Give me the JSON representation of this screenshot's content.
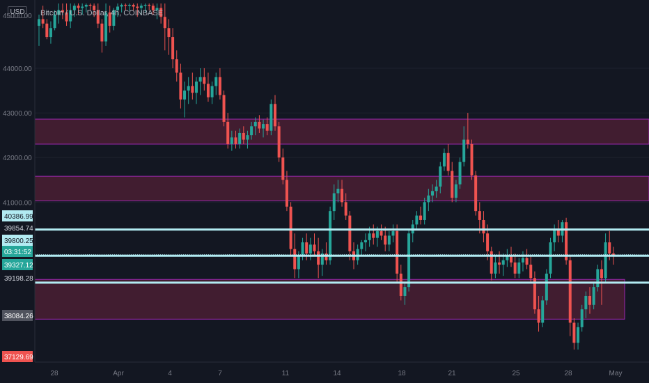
{
  "header": {
    "title": "Bitcoin / U.S. Dollar, 4h, COINBASE",
    "currency_badge": "USD"
  },
  "colors": {
    "background": "#131722",
    "up": "#26a69a",
    "down": "#ef5350",
    "zone_fill": "#4a1f33",
    "zone_border": "#9c27b0",
    "level_line": "#b2ebf2",
    "axis_text": "#787b86",
    "grid": "#1e222d"
  },
  "chart_data": {
    "type": "candlestick",
    "ylim": [
      36950,
      45450
    ],
    "y_ticks": [
      41000,
      42000,
      43000,
      44000
    ],
    "y_tick_labels": [
      "41000.00",
      "42000.00",
      "43000.00",
      "44000.00"
    ],
    "x_ticks": [
      "28",
      "Apr",
      "4",
      "7",
      "11",
      "14",
      "18",
      "21",
      "25",
      "28",
      "May"
    ],
    "price_labels": [
      {
        "text": "40386.99",
        "price": 40386.99,
        "style": "level"
      },
      {
        "text": "39854.74",
        "price": 39854.74,
        "style": "plain"
      },
      {
        "text": "39800.25",
        "price": 39800.25,
        "style": "level"
      },
      {
        "text": "03:31:52",
        "price": 39600,
        "style": "current"
      },
      {
        "text": "39327.12",
        "price": 39327.12,
        "style": "current"
      },
      {
        "text": "39198.28",
        "price": 39198.28,
        "style": "plain"
      },
      {
        "text": "38084.26",
        "price": 38084.26,
        "style": "gray"
      },
      {
        "text": "37129.69",
        "price": 37129.69,
        "style": "red"
      }
    ],
    "zones": [
      {
        "from": 42300,
        "to": 42860
      },
      {
        "from": 41030,
        "to": 41580
      },
      {
        "from": 38380,
        "to": 39270,
        "ends_at": "28"
      }
    ],
    "levels": [
      40386.99,
      39800.25,
      39198.28
    ],
    "candles": [
      [
        44950,
        45200,
        44500,
        45100
      ],
      [
        45100,
        45400,
        44900,
        45000
      ],
      [
        45000,
        45100,
        44650,
        44700
      ],
      [
        44700,
        45050,
        44550,
        44900
      ],
      [
        44900,
        45300,
        44850,
        45200
      ],
      [
        45200,
        45450,
        45000,
        45300
      ],
      [
        45300,
        45450,
        45100,
        45250
      ],
      [
        45250,
        45450,
        44950,
        45050
      ],
      [
        45050,
        45450,
        44900,
        45300
      ],
      [
        45300,
        45450,
        45150,
        45400
      ],
      [
        45400,
        45450,
        45200,
        45350
      ],
      [
        45350,
        45450,
        45200,
        45380
      ],
      [
        45380,
        45450,
        45250,
        45420
      ],
      [
        45420,
        45450,
        45300,
        45400
      ],
      [
        45400,
        45450,
        45150,
        45300
      ],
      [
        45300,
        45450,
        44900,
        45000
      ],
      [
        45000,
        45100,
        44350,
        44600
      ],
      [
        44600,
        45450,
        44500,
        45250
      ],
      [
        45250,
        45400,
        44800,
        44950
      ],
      [
        44950,
        45350,
        44850,
        45300
      ],
      [
        45300,
        45450,
        45150,
        45380
      ],
      [
        45380,
        45450,
        45250,
        45420
      ],
      [
        45420,
        45450,
        45300,
        45400
      ],
      [
        45400,
        45450,
        45280,
        45420
      ],
      [
        45420,
        45450,
        45300,
        45380
      ],
      [
        45380,
        45450,
        45150,
        45350
      ],
      [
        45350,
        45450,
        45200,
        45400
      ],
      [
        45400,
        45450,
        45250,
        45420
      ],
      [
        45420,
        45450,
        45300,
        45400
      ],
      [
        45400,
        45450,
        45200,
        45300
      ],
      [
        45300,
        45450,
        45100,
        45350
      ],
      [
        45350,
        45450,
        45000,
        45150
      ],
      [
        45150,
        45450,
        44400,
        44900
      ],
      [
        44900,
        45100,
        44300,
        44700
      ],
      [
        44700,
        44900,
        44000,
        44200
      ],
      [
        44200,
        44400,
        43700,
        43900
      ],
      [
        43900,
        44100,
        43100,
        43300
      ],
      [
        43300,
        43700,
        42900,
        43500
      ],
      [
        43500,
        43800,
        43200,
        43600
      ],
      [
        43600,
        43900,
        43300,
        43450
      ],
      [
        43450,
        43800,
        43200,
        43700
      ],
      [
        43700,
        44000,
        43400,
        43800
      ],
      [
        43800,
        44000,
        43500,
        43650
      ],
      [
        43650,
        43900,
        43250,
        43350
      ],
      [
        43350,
        43700,
        43200,
        43600
      ],
      [
        43600,
        43900,
        43400,
        43800
      ],
      [
        43800,
        44000,
        43300,
        43400
      ],
      [
        43400,
        43500,
        42700,
        42800
      ],
      [
        42800,
        43000,
        42200,
        42300
      ],
      [
        42300,
        42600,
        42150,
        42450
      ],
      [
        42450,
        42600,
        42200,
        42300
      ],
      [
        42300,
        42650,
        42200,
        42550
      ],
      [
        42550,
        42700,
        42300,
        42400
      ],
      [
        42400,
        42600,
        42200,
        42500
      ],
      [
        42500,
        42800,
        42400,
        42700
      ],
      [
        42700,
        42900,
        42500,
        42800
      ],
      [
        42800,
        42950,
        42550,
        42650
      ],
      [
        42650,
        42850,
        42450,
        42750
      ],
      [
        42750,
        42900,
        42500,
        42600
      ],
      [
        42600,
        43300,
        42500,
        43200
      ],
      [
        43200,
        43400,
        42600,
        42700
      ],
      [
        42700,
        42800,
        41900,
        42000
      ],
      [
        42000,
        42200,
        41400,
        41500
      ],
      [
        41500,
        41700,
        40800,
        40900
      ],
      [
        40900,
        41000,
        39800,
        39950
      ],
      [
        39950,
        40300,
        39300,
        39500
      ],
      [
        39500,
        39900,
        39300,
        39800
      ],
      [
        39800,
        40200,
        39700,
        40100
      ],
      [
        40100,
        40300,
        39700,
        39850
      ],
      [
        39850,
        40200,
        39700,
        40050
      ],
      [
        40050,
        40300,
        39800,
        39900
      ],
      [
        39900,
        40200,
        39300,
        39600
      ],
      [
        39600,
        39950,
        39350,
        39850
      ],
      [
        39850,
        40100,
        39600,
        39700
      ],
      [
        39700,
        40900,
        39600,
        40800
      ],
      [
        40800,
        41400,
        40600,
        41200
      ],
      [
        41200,
        41500,
        41000,
        41300
      ],
      [
        41300,
        41500,
        40900,
        41000
      ],
      [
        41000,
        41200,
        40600,
        40700
      ],
      [
        40700,
        40800,
        39700,
        39900
      ],
      [
        39900,
        40100,
        39500,
        39700
      ],
      [
        39700,
        40050,
        39600,
        39950
      ],
      [
        39950,
        40150,
        39800,
        40100
      ],
      [
        40100,
        40300,
        39900,
        40150
      ],
      [
        40150,
        40450,
        40000,
        40300
      ],
      [
        40300,
        40500,
        40050,
        40200
      ],
      [
        40200,
        40450,
        40000,
        40350
      ],
      [
        40350,
        40500,
        40150,
        40250
      ],
      [
        40250,
        40450,
        39900,
        40050
      ],
      [
        40050,
        40350,
        39900,
        40250
      ],
      [
        40250,
        40500,
        40100,
        40350
      ],
      [
        40350,
        40500,
        39200,
        39400
      ],
      [
        39400,
        39600,
        38800,
        38900
      ],
      [
        38900,
        39200,
        38700,
        39100
      ],
      [
        39100,
        40400,
        39000,
        40300
      ],
      [
        40300,
        40600,
        40100,
        40500
      ],
      [
        40500,
        40800,
        40400,
        40700
      ],
      [
        40700,
        40900,
        40500,
        40600
      ],
      [
        40600,
        41100,
        40500,
        41000
      ],
      [
        41000,
        41300,
        40800,
        41150
      ],
      [
        41150,
        41400,
        41000,
        41250
      ],
      [
        41250,
        41500,
        41100,
        41350
      ],
      [
        41350,
        41900,
        41200,
        41800
      ],
      [
        41800,
        42200,
        41700,
        42100
      ],
      [
        42100,
        42300,
        41600,
        41700
      ],
      [
        41700,
        41900,
        41000,
        41100
      ],
      [
        41100,
        41500,
        41000,
        41400
      ],
      [
        41400,
        42000,
        41300,
        41900
      ],
      [
        41900,
        42700,
        41800,
        42400
      ],
      [
        42400,
        43000,
        42200,
        42300
      ],
      [
        42300,
        42400,
        41500,
        41600
      ],
      [
        41600,
        41700,
        40700,
        40800
      ],
      [
        40800,
        41000,
        40300,
        40600
      ],
      [
        40600,
        40800,
        40100,
        40300
      ],
      [
        40300,
        40500,
        39700,
        39900
      ],
      [
        39900,
        40000,
        39250,
        39400
      ],
      [
        39400,
        39800,
        39300,
        39650
      ],
      [
        39650,
        39900,
        39400,
        39600
      ],
      [
        39600,
        39850,
        39350,
        39700
      ],
      [
        39700,
        39950,
        39550,
        39800
      ],
      [
        39800,
        40000,
        39550,
        39650
      ],
      [
        39650,
        39850,
        39300,
        39400
      ],
      [
        39400,
        39750,
        39300,
        39650
      ],
      [
        39650,
        39900,
        39450,
        39750
      ],
      [
        39750,
        39950,
        39500,
        39600
      ],
      [
        39600,
        39800,
        39200,
        39300
      ],
      [
        39300,
        39450,
        38500,
        38600
      ],
      [
        38600,
        38900,
        38100,
        38300
      ],
      [
        38300,
        38900,
        38200,
        38800
      ],
      [
        38800,
        39500,
        38700,
        39400
      ],
      [
        39400,
        40200,
        39300,
        40100
      ],
      [
        40100,
        40500,
        39900,
        40400
      ],
      [
        40400,
        40600,
        40100,
        40250
      ],
      [
        40250,
        40600,
        40100,
        40550
      ],
      [
        40550,
        40650,
        39600,
        39700
      ],
      [
        39700,
        39800,
        38000,
        38300
      ],
      [
        38300,
        38400,
        37700,
        37850
      ],
      [
        37850,
        38300,
        37700,
        38200
      ],
      [
        38200,
        38700,
        38100,
        38600
      ],
      [
        38600,
        39000,
        38400,
        38900
      ],
      [
        38900,
        39100,
        38500,
        38700
      ],
      [
        38700,
        39200,
        38600,
        39100
      ],
      [
        39100,
        39600,
        39000,
        39500
      ],
      [
        39500,
        39700,
        38700,
        39300
      ],
      [
        39300,
        40300,
        39200,
        40100
      ],
      [
        40100,
        40350,
        39700,
        39850
      ],
      [
        39850,
        40000,
        39600,
        39800
      ]
    ]
  }
}
